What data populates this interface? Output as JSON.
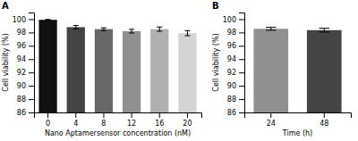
{
  "chart_data": [
    {
      "type": "bar",
      "title": "A",
      "categories": [
        "0",
        "4",
        "8",
        "12",
        "16",
        "20"
      ],
      "values": [
        99.9,
        98.8,
        98.5,
        98.2,
        98.5,
        97.9
      ],
      "errors": [
        0.05,
        0.25,
        0.2,
        0.28,
        0.32,
        0.38
      ],
      "colors": [
        "#111111",
        "#444444",
        "#686868",
        "#909090",
        "#b0b0b0",
        "#d4d4d4"
      ],
      "xlabel": "Nano Aptamersensor concentration (nM)",
      "ylabel": "Cell viability (%)",
      "ylim": [
        86,
        101
      ],
      "yticks": [
        86,
        88,
        90,
        92,
        94,
        96,
        98,
        100
      ]
    },
    {
      "type": "bar",
      "title": "B",
      "categories": [
        "24",
        "48"
      ],
      "values": [
        98.55,
        98.35
      ],
      "errors": [
        0.22,
        0.28
      ],
      "colors": [
        "#909090",
        "#444444"
      ],
      "xlabel": "Time (h)",
      "ylabel": "Cell viability (%)",
      "ylim": [
        86,
        101
      ],
      "yticks": [
        86,
        88,
        90,
        92,
        94,
        96,
        98,
        100
      ]
    }
  ]
}
